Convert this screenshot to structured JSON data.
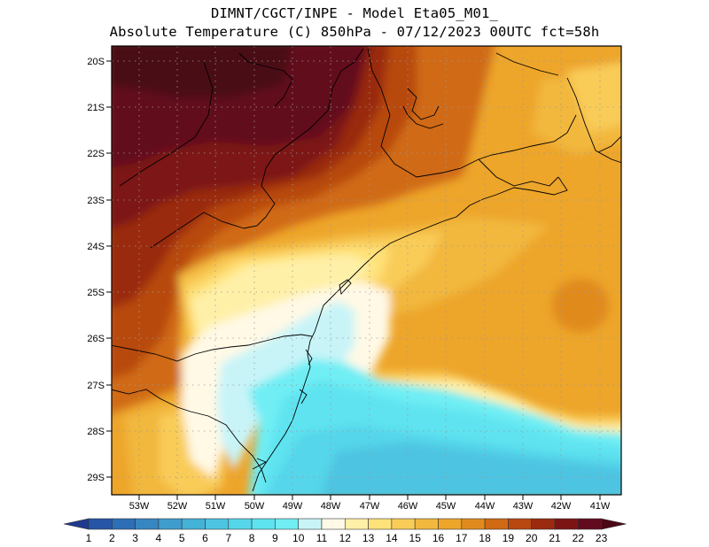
{
  "header": {
    "line1": "DIMNT/CGCT/INPE -  Model Eta05_M01_",
    "line2": "Absolute Temperature (C) 850hPa -  07/12/2023 00UTC fct=58h"
  },
  "map": {
    "lat_labels": [
      "20S",
      "21S",
      "22S",
      "23S",
      "24S",
      "25S",
      "26S",
      "27S",
      "28S",
      "29S"
    ],
    "lon_labels": [
      "53W",
      "52W",
      "51W",
      "50W",
      "49W",
      "48W",
      "47W",
      "46W",
      "45W",
      "44W",
      "43W",
      "42W",
      "41W"
    ]
  },
  "colorbar": {
    "labels": [
      "1",
      "2",
      "3",
      "4",
      "5",
      "6",
      "7",
      "8",
      "9",
      "10",
      "11",
      "12",
      "13",
      "14",
      "15",
      "16",
      "17",
      "18",
      "19",
      "20",
      "21",
      "22",
      "23"
    ],
    "colors": [
      "#1f3b8f",
      "#2655a6",
      "#2d6fb6",
      "#3686c2",
      "#3e9dcd",
      "#45b2d8",
      "#4dc4e2",
      "#55d6ea",
      "#5ee3f0",
      "#70eef4",
      "#c8f4f8",
      "#fff9e6",
      "#fff0a8",
      "#ffe27a",
      "#f9cc58",
      "#f2b73e",
      "#eda52a",
      "#e08a1e",
      "#d06a14",
      "#b8480f",
      "#9a2a10",
      "#7d1414",
      "#620a1e",
      "#4a0816"
    ]
  }
}
